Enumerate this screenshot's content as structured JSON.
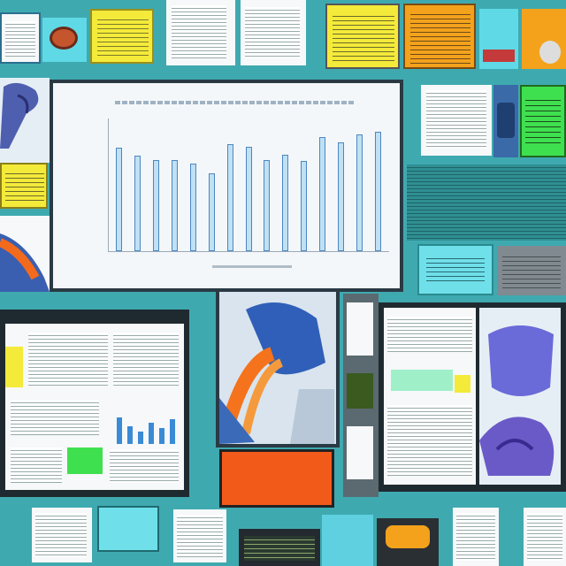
{
  "chart": {
    "title": "",
    "values": [
      0.78,
      0.72,
      0.69,
      0.69,
      0.66,
      0.59,
      0.81,
      0.79,
      0.69,
      0.73,
      0.68,
      0.86,
      0.82,
      0.88,
      0.9
    ]
  },
  "colors": {
    "background": "#3fa9b0",
    "panel_yellow": "#f4ea3a",
    "panel_orange": "#f4a21c",
    "panel_green": "#3fe04f",
    "bar_fill": "#bfe1f3",
    "bar_stroke": "#4d86c4",
    "sign_orange": "#f25a1a"
  },
  "sign": {
    "line1": "",
    "line2": ""
  }
}
